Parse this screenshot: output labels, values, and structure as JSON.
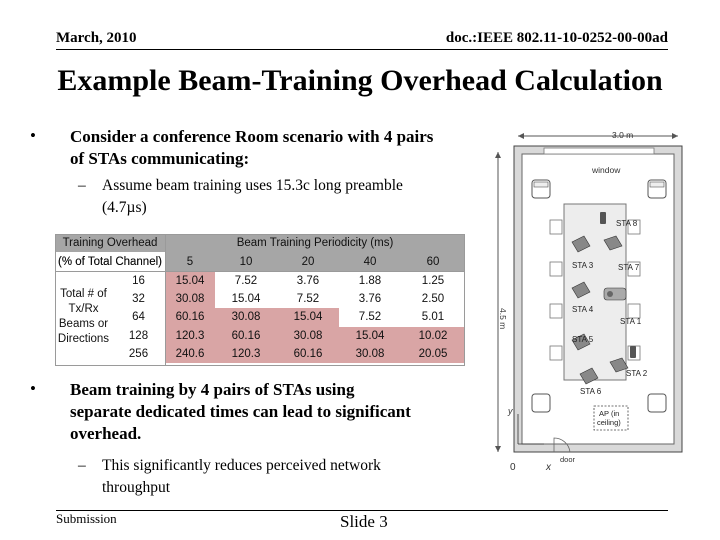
{
  "header": {
    "date": "March, 2010",
    "doc": "doc.:IEEE 802.11-10-0252-00-00ad"
  },
  "title": "Example Beam-Training Overhead Calculation",
  "bullets": [
    {
      "dot": "•",
      "line1": "Consider a conference Room scenario with 4 pairs",
      "line2": "of STAs communicating:"
    },
    {
      "dot": "•",
      "line1": "Beam training by 4 pairs of STAs using",
      "line2": "separate dedicated times can lead to significant",
      "line3": "overhead."
    }
  ],
  "subbullets": [
    {
      "dash": "–",
      "line1": "Assume beam training uses 15.3c long preamble",
      "line2": "(4.7µs)"
    },
    {
      "dash": "–",
      "line1": "This significantly reduces perceived network",
      "line2": "throughput"
    }
  ],
  "table": {
    "hdr_left_1": "Training Overhead",
    "hdr_left_2": "(% of Total Channel)",
    "hdr_right": "Beam Training  Periodicity (ms)",
    "periodicities": [
      "5",
      "10",
      "20",
      "40",
      "60"
    ],
    "row_label": [
      "Total # of",
      "Tx/Rx",
      "Beams or",
      "Directions"
    ],
    "rows": [
      {
        "n": "16",
        "v": [
          "15.04",
          "7.52",
          "3.76",
          "1.88",
          "1.25"
        ]
      },
      {
        "n": "32",
        "v": [
          "30.08",
          "15.04",
          "7.52",
          "3.76",
          "2.50"
        ]
      },
      {
        "n": "64",
        "v": [
          "60.16",
          "30.08",
          "15.04",
          "7.52",
          "5.01"
        ]
      },
      {
        "n": "128",
        "v": [
          "120.3",
          "60.16",
          "30.08",
          "15.04",
          "10.02"
        ]
      },
      {
        "n": "256",
        "v": [
          "240.6",
          "120.3",
          "60.16",
          "30.08",
          "20.05"
        ]
      }
    ]
  },
  "diagram": {
    "width_label": "3.0 m",
    "height_label": "4.5 m",
    "window": "window",
    "door": "door",
    "ap": [
      "AP (in",
      "ceiling)"
    ],
    "y_axis": "y",
    "x_axis": "x",
    "origin": "0",
    "stas": [
      "STA 8",
      "STA 3",
      "STA 7",
      "STA 4",
      "STA 1",
      "STA 5",
      "STA 2",
      "STA 6"
    ]
  },
  "footer": {
    "left": "Submission",
    "center": "Slide 3"
  },
  "colors": {
    "gray_cell": "#a6a6a6",
    "pink_cell": "#d9a5a5"
  }
}
